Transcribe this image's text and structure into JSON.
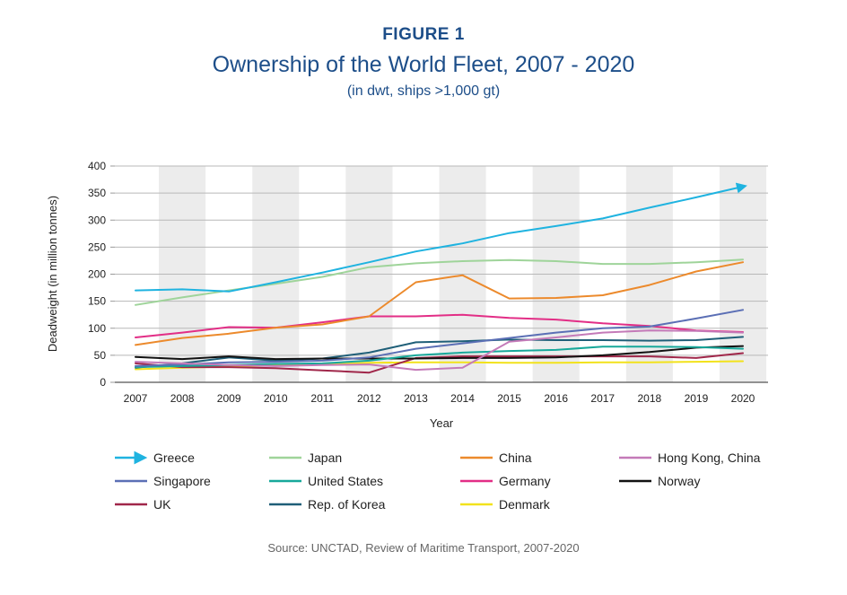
{
  "figure_label": "FIGURE 1",
  "chart_data": {
    "type": "line",
    "title": "Ownership of the World Fleet, 2007 - 2020",
    "subtitle": "(in dwt, ships >1,000 gt)",
    "xlabel": "Year",
    "ylabel": "Deadweight (in million tonnes)",
    "ylim": [
      0,
      400
    ],
    "yticks": [
      0,
      50,
      100,
      150,
      200,
      250,
      300,
      350,
      400
    ],
    "categories": [
      "2007",
      "2008",
      "2009",
      "2010",
      "2011",
      "2012",
      "2013",
      "2014",
      "2015",
      "2016",
      "2017",
      "2018",
      "2019",
      "2020"
    ],
    "series": [
      {
        "name": "Greece",
        "color": "#1fb3e0",
        "arrow": true,
        "values": [
          170,
          172,
          168,
          185,
          203,
          222,
          242,
          257,
          276,
          289,
          303,
          323,
          342,
          362
        ]
      },
      {
        "name": "Japan",
        "color": "#9fd49a",
        "values": [
          143,
          157,
          170,
          182,
          195,
          213,
          220,
          224,
          226,
          224,
          219,
          219,
          222,
          227
        ]
      },
      {
        "name": "China",
        "color": "#ec8a2c",
        "values": [
          69,
          82,
          90,
          101,
          107,
          122,
          185,
          198,
          155,
          156,
          161,
          180,
          205,
          222
        ]
      },
      {
        "name": "Hong Kong, China",
        "color": "#c47ab8",
        "values": [
          38,
          35,
          32,
          30,
          32,
          33,
          23,
          27,
          75,
          83,
          92,
          96,
          95,
          92
        ]
      },
      {
        "name": "Singapore",
        "color": "#5b6fb5",
        "values": [
          30,
          33,
          37,
          38,
          40,
          46,
          62,
          72,
          82,
          92,
          100,
          103,
          118,
          134
        ]
      },
      {
        "name": "United States",
        "color": "#17a89a",
        "values": [
          28,
          30,
          32,
          34,
          35,
          40,
          50,
          55,
          58,
          60,
          66,
          66,
          65,
          62
        ]
      },
      {
        "name": "Germany",
        "color": "#e22e86",
        "values": [
          83,
          92,
          102,
          101,
          111,
          122,
          122,
          125,
          119,
          116,
          109,
          104,
          96,
          93
        ]
      },
      {
        "name": "Norway",
        "color": "#111111",
        "values": [
          47,
          43,
          48,
          43,
          44,
          44,
          44,
          45,
          45,
          46,
          50,
          56,
          64,
          67
        ]
      },
      {
        "name": "UK",
        "color": "#a0274a",
        "values": [
          35,
          28,
          28,
          26,
          22,
          18,
          45,
          48,
          48,
          48,
          48,
          48,
          45,
          54
        ]
      },
      {
        "name": "Rep. of Korea",
        "color": "#1f5f78",
        "values": [
          27,
          35,
          46,
          40,
          44,
          55,
          74,
          76,
          79,
          78,
          78,
          77,
          78,
          84
        ]
      },
      {
        "name": "Denmark",
        "color": "#f2e21c",
        "values": [
          24,
          27,
          29,
          31,
          33,
          36,
          37,
          37,
          36,
          36,
          37,
          37,
          38,
          39
        ]
      }
    ],
    "legend_position": "bottom",
    "grid": true
  },
  "source": "Source: UNCTAD, Review of Maritime Transport, 2007-2020"
}
